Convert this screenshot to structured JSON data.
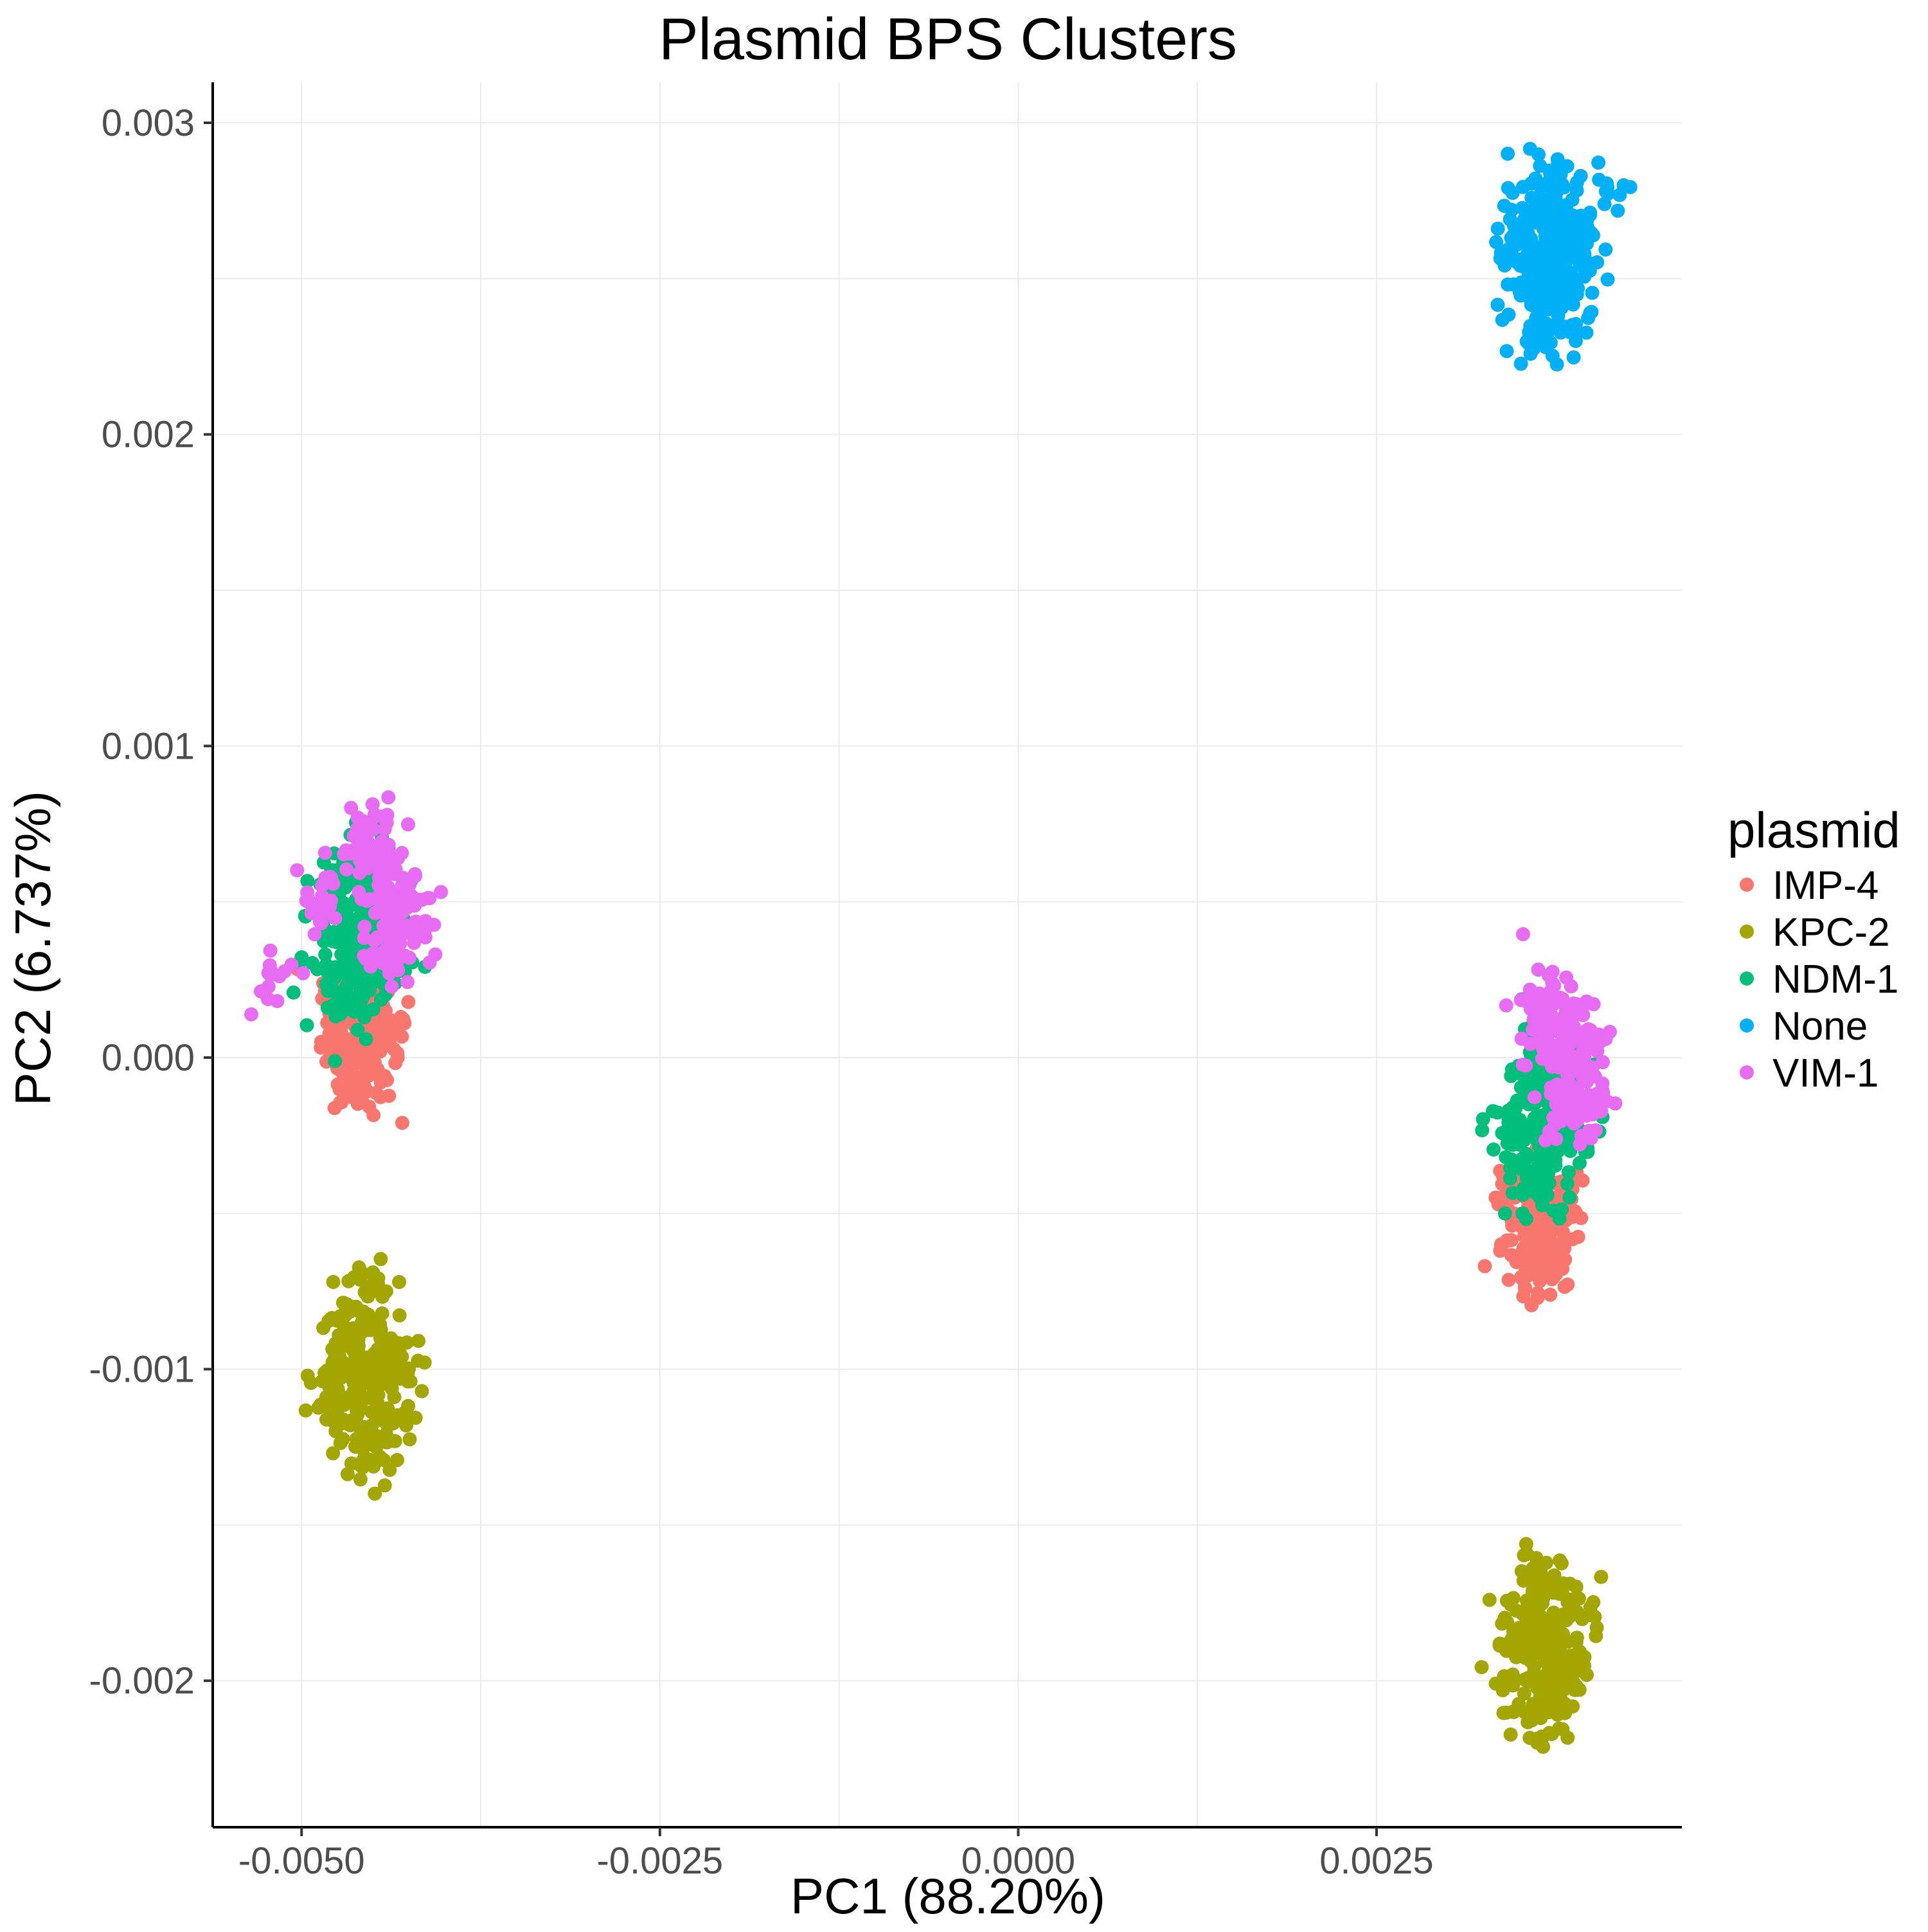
{
  "chart_data": {
    "type": "scatter",
    "title": "Plasmid BPS Clusters",
    "xlabel": "PC1 (88.20%)",
    "ylabel": "PC2 (6.737%)",
    "xlim": [
      -0.00562,
      0.00463
    ],
    "ylim": [
      -0.00247,
      0.00313
    ],
    "x_ticks": [
      -0.005,
      -0.0025,
      0.0,
      0.0025
    ],
    "x_tick_labels": [
      "-0.0050",
      "-0.0025",
      "0.0000",
      "0.0025"
    ],
    "y_ticks": [
      -0.002,
      -0.001,
      0.0,
      0.001,
      0.002,
      0.003
    ],
    "y_tick_labels": [
      "-0.002",
      "-0.001",
      "0.000",
      "0.001",
      "0.002",
      "0.003"
    ],
    "grid": true,
    "legend": {
      "title": "plasmid",
      "placement": "right"
    },
    "series": [
      {
        "name": "IMP-4",
        "color": "#F8766D",
        "points": [
          [
            -0.0046,
            5e-05
          ],
          [
            -0.0047,
            0.0
          ],
          [
            -0.00455,
            -3e-05
          ],
          [
            -0.00465,
            0.00012
          ],
          [
            -0.0045,
            8e-05
          ],
          [
            -0.00475,
            6e-05
          ],
          [
            -0.00445,
            2e-05
          ],
          [
            -0.00458,
            -8e-05
          ],
          [
            -0.00462,
            0.00018
          ],
          [
            -0.0048,
            0.00015
          ],
          [
            -0.0044,
            0.0001
          ],
          [
            -0.00453,
            -4e-05
          ],
          [
            -0.00468,
            0.00022
          ],
          [
            -0.00448,
            0.0002
          ],
          [
            -0.00457,
            -0.0001
          ],
          [
            0.00365,
            -0.0005
          ],
          [
            0.0036,
            -0.00055
          ],
          [
            0.0037,
            -0.0006
          ],
          [
            0.00355,
            -0.00045
          ],
          [
            0.00375,
            -0.00048
          ],
          [
            0.00362,
            -0.00065
          ],
          [
            0.00368,
            -0.0004
          ],
          [
            0.0035,
            -0.00052
          ],
          [
            0.0038,
            -0.00056
          ],
          [
            0.00358,
            -0.00068
          ],
          [
            0.00372,
            -0.0007
          ],
          [
            0.00345,
            -0.00042
          ],
          [
            0.00366,
            -0.00058
          ],
          [
            0.00378,
            -0.00044
          ],
          [
            0.00352,
            -0.00062
          ]
        ]
      },
      {
        "name": "KPC-2",
        "color": "#A3A500",
        "points": [
          [
            -0.00455,
            -0.001
          ],
          [
            -0.0046,
            -0.00095
          ],
          [
            -0.0045,
            -0.00105
          ],
          [
            -0.00465,
            -0.0011
          ],
          [
            -0.00445,
            -0.0009
          ],
          [
            -0.0047,
            -0.001
          ],
          [
            -0.0044,
            -0.00115
          ],
          [
            -0.00458,
            -0.00085
          ],
          [
            -0.00452,
            -0.0012
          ],
          [
            -0.00462,
            -0.0008
          ],
          [
            -0.00448,
            -0.00125
          ],
          [
            -0.00475,
            -0.00092
          ],
          [
            -0.00435,
            -0.00102
          ],
          [
            -0.00456,
            -0.0013
          ],
          [
            -0.00449,
            -0.00072
          ],
          [
            -0.0048,
            -0.00108
          ],
          [
            -0.0043,
            -0.00096
          ],
          [
            -0.00466,
            -0.00118
          ],
          [
            0.00365,
            -0.0019
          ],
          [
            0.0036,
            -0.00185
          ],
          [
            0.0037,
            -0.00195
          ],
          [
            0.00355,
            -0.0018
          ],
          [
            0.00375,
            -0.002
          ],
          [
            0.00362,
            -0.00175
          ],
          [
            0.00368,
            -0.00205
          ],
          [
            0.0035,
            -0.0019
          ],
          [
            0.0038,
            -0.00185
          ],
          [
            0.00358,
            -0.0021
          ],
          [
            0.00372,
            -0.0017
          ],
          [
            0.00345,
            -0.00198
          ],
          [
            0.00385,
            -0.00192
          ],
          [
            0.00364,
            -0.00165
          ],
          [
            0.00366,
            -0.00218
          ],
          [
            0.00354,
            -0.00182
          ],
          [
            0.00376,
            -0.00202
          ],
          [
            0.0039,
            -0.00178
          ]
        ]
      },
      {
        "name": "NDM-1",
        "color": "#00BF7D",
        "points": [
          [
            -0.0046,
            0.0004
          ],
          [
            -0.00455,
            0.00045
          ],
          [
            -0.00465,
            0.00035
          ],
          [
            -0.0045,
            0.0005
          ],
          [
            -0.0047,
            0.0003
          ],
          [
            -0.00458,
            0.00055
          ],
          [
            -0.00462,
            0.00025
          ],
          [
            -0.00445,
            0.00042
          ],
          [
            -0.00475,
            0.00048
          ],
          [
            -0.00452,
            0.0006
          ],
          [
            -0.00468,
            0.0002
          ],
          [
            -0.0044,
            0.00035
          ],
          [
            -0.0048,
            0.0004
          ],
          [
            -0.00456,
            0.00065
          ],
          [
            -0.00464,
            0.00015
          ],
          [
            -0.00448,
            0.00028
          ],
          [
            -0.00472,
            0.00058
          ],
          [
            -0.00459,
            0.00032
          ],
          [
            0.00365,
            -0.0002
          ],
          [
            0.0036,
            -0.00015
          ],
          [
            0.0037,
            -0.00025
          ],
          [
            0.00355,
            -0.0001
          ],
          [
            0.00375,
            -0.0003
          ],
          [
            0.00362,
            -5e-05
          ],
          [
            0.00368,
            -0.00035
          ],
          [
            0.0035,
            -0.0002
          ],
          [
            0.0038,
            -0.00012
          ],
          [
            0.00358,
            -0.0004
          ],
          [
            0.00372,
            0.0
          ],
          [
            0.00345,
            -0.00028
          ],
          [
            0.00385,
            -0.00018
          ],
          [
            0.00364,
            -0.00045
          ],
          [
            0.00366,
            5e-05
          ],
          [
            0.00354,
            -0.00032
          ],
          [
            0.00376,
            -8e-05
          ],
          [
            0.0039,
            -0.00022
          ]
        ]
      },
      {
        "name": "None",
        "color": "#00B0F6",
        "points": [
          [
            0.0037,
            0.0026
          ],
          [
            0.00365,
            0.00255
          ],
          [
            0.00375,
            0.00265
          ],
          [
            0.0036,
            0.0025
          ],
          [
            0.0038,
            0.00258
          ],
          [
            0.00368,
            0.0027
          ],
          [
            0.00372,
            0.00245
          ],
          [
            0.00355,
            0.00262
          ],
          [
            0.00385,
            0.00252
          ],
          [
            0.00363,
            0.00275
          ],
          [
            0.00377,
            0.0024
          ],
          [
            0.0035,
            0.00255
          ],
          [
            0.0039,
            0.00266
          ],
          [
            0.00366,
            0.0028
          ],
          [
            0.00374,
            0.00235
          ],
          [
            0.00358,
            0.00244
          ],
          [
            0.00382,
            0.00272
          ],
          [
            0.00369,
            0.00248
          ],
          [
            0.00395,
            0.00258
          ],
          [
            0.00345,
            0.0026
          ],
          [
            0.00371,
            0.00284
          ],
          [
            0.00362,
            0.00232
          ],
          [
            0.0041,
            0.00278
          ],
          [
            0.00386,
            0.00244
          ]
        ]
      },
      {
        "name": "VIM-1",
        "color": "#E76BF3",
        "points": [
          [
            -0.0044,
            0.0005
          ],
          [
            -0.00435,
            0.00045
          ],
          [
            -0.0043,
            0.00055
          ],
          [
            -0.00445,
            0.0006
          ],
          [
            -0.00428,
            0.0004
          ],
          [
            -0.0045,
            0.00065
          ],
          [
            -0.00438,
            0.00035
          ],
          [
            -0.00425,
            0.00052
          ],
          [
            -0.0048,
            0.00058
          ],
          [
            -0.00455,
            0.0007
          ],
          [
            -0.00442,
            0.0003
          ],
          [
            -0.0049,
            0.00048
          ],
          [
            -0.0052,
            0.00027
          ],
          [
            -0.00452,
            0.00075
          ],
          [
            0.0038,
            5e-05
          ],
          [
            0.00385,
            -5e-05
          ],
          [
            0.00375,
            0.0001
          ],
          [
            0.0039,
            -0.0001
          ],
          [
            0.0037,
            0.00012
          ],
          [
            0.00395,
            0.0
          ],
          [
            0.00365,
            0.00015
          ],
          [
            0.00388,
            -0.00015
          ],
          [
            0.00378,
            -0.0002
          ],
          [
            0.00392,
            8e-05
          ],
          [
            0.00372,
            0.0002
          ],
          [
            0.00398,
            -0.00012
          ],
          [
            0.00383,
            0.00014
          ],
          [
            0.00368,
            5e-05
          ]
        ]
      }
    ]
  }
}
